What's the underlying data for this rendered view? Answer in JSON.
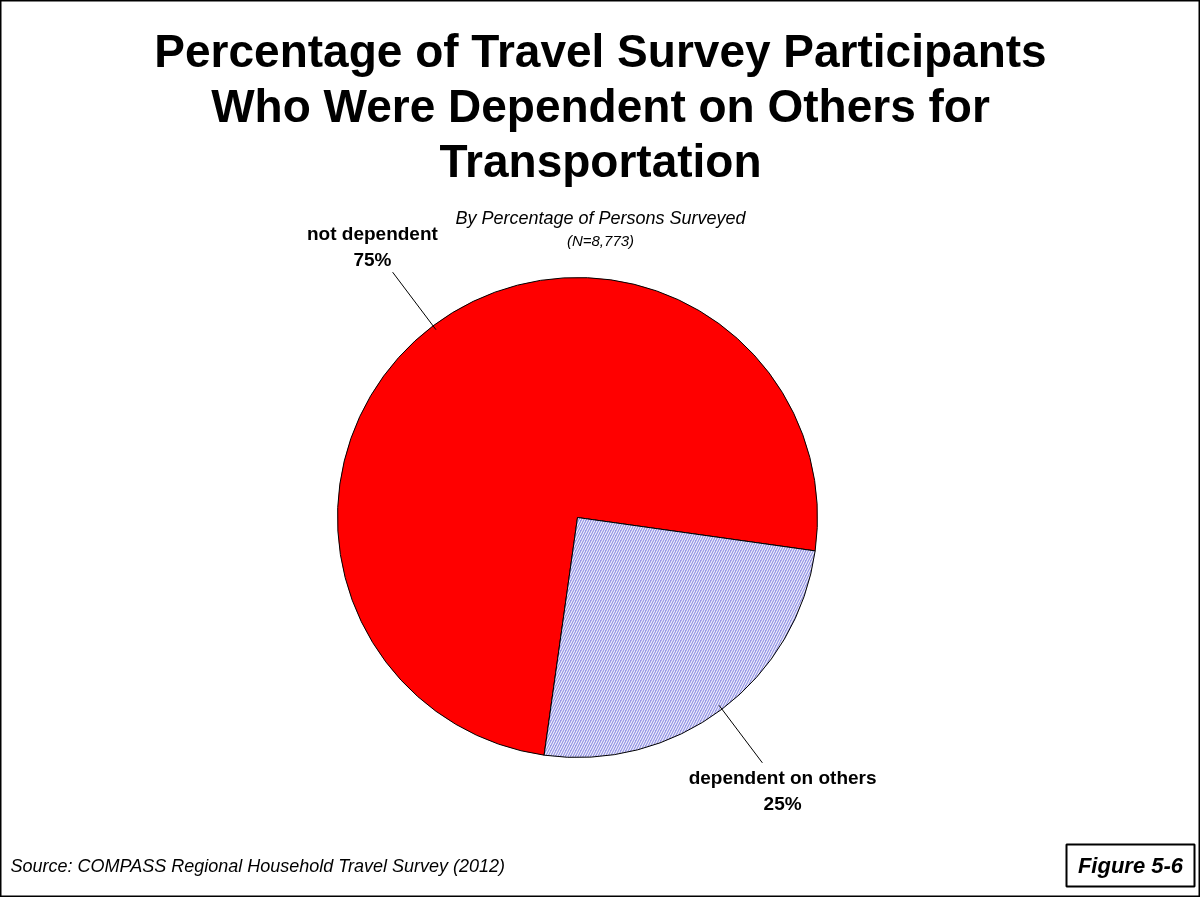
{
  "chart_data": {
    "type": "pie",
    "title": "Percentage of Travel Survey Participants\nWho Were Dependent on Others for\nTransportation",
    "subtitle": "By Percentage of Persons Surveyed",
    "categories": [
      "not dependent",
      "dependent on others"
    ],
    "values": [
      75,
      25
    ],
    "colors": [
      "#ff0000",
      "#9999e6"
    ],
    "value_labels": [
      "75%",
      "25%"
    ],
    "annotations": [
      "(N=8,773)",
      "Source:  COMPASS Regional Household Travel Survey (2012)",
      "Figure 5-6"
    ]
  }
}
